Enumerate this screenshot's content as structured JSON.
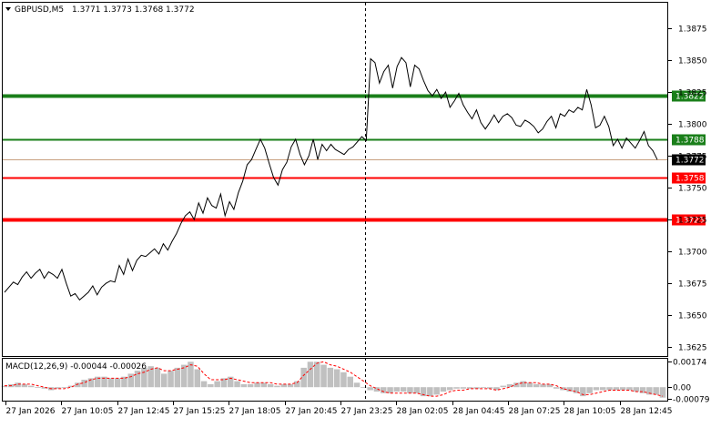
{
  "header": {
    "symbol": "GBPUSD,M5",
    "ohlc": "1.3771 1.3773 1.3768 1.3772"
  },
  "macd_header": {
    "label": "MACD(12,26,9) -0.00044 -0.00026"
  },
  "colors": {
    "price_line": "#000000",
    "resistance": "#1a7f1a",
    "support": "#ff0000",
    "current_price_bg": "#000000",
    "macd_histogram": "#c0c0c0",
    "macd_signal": "#ff0000",
    "grid": "#000000"
  },
  "chart_data": {
    "type": "line",
    "price_axis": {
      "ticks": [
        1.3875,
        1.385,
        1.3825,
        1.38,
        1.3775,
        1.375,
        1.3725,
        1.37,
        1.3675,
        1.365,
        1.3625
      ],
      "tick_labels": [
        "1.3875",
        "1.3850",
        "1.3825",
        "1.3800",
        "1.3775",
        "1.3750",
        "1.3725",
        "1.3700",
        "1.3675",
        "1.3650",
        "1.3625"
      ],
      "ylim": [
        1.3618,
        1.3895
      ]
    },
    "time_axis": {
      "labels": [
        "27 Jan 2026",
        "27 Jan 10:05",
        "27 Jan 12:45",
        "27 Jan 15:25",
        "27 Jan 18:05",
        "27 Jan 20:45",
        "27 Jan 23:25",
        "28 Jan 02:05",
        "28 Jan 04:45",
        "28 Jan 07:25",
        "28 Jan 10:05",
        "28 Jan 12:45"
      ]
    },
    "current_price": {
      "value": 1.3772,
      "label": "1.3772"
    },
    "levels": [
      {
        "value": 1.3822,
        "label": "1.3822",
        "kind": "resistance",
        "weight": "thick"
      },
      {
        "value": 1.3788,
        "label": "1.3788",
        "kind": "resistance",
        "weight": "thin"
      },
      {
        "value": 1.3758,
        "label": "1.3758",
        "kind": "support",
        "weight": "thin"
      },
      {
        "value": 1.3725,
        "label": "1.3725",
        "kind": "support",
        "weight": "thick"
      }
    ],
    "series": [
      {
        "values": [
          1.3668,
          1.3672,
          1.3676,
          1.3674,
          1.368,
          1.3684,
          1.3679,
          1.3683,
          1.3686,
          1.3679,
          1.3684,
          1.3682,
          1.3679,
          1.3686,
          1.3675,
          1.3665,
          1.3667,
          1.3662,
          1.3665,
          1.3668,
          1.3673,
          1.3666,
          1.3672,
          1.3675,
          1.3677,
          1.3676,
          1.3689,
          1.3682,
          1.3694,
          1.3685,
          1.3693,
          1.3697,
          1.3696,
          1.3699,
          1.3702,
          1.3698,
          1.3706,
          1.3701,
          1.3708,
          1.3714,
          1.3722,
          1.3728,
          1.3731,
          1.3725,
          1.3738,
          1.373,
          1.3742,
          1.3736,
          1.3734,
          1.3745,
          1.3728,
          1.3739,
          1.3733,
          1.3746,
          1.3755,
          1.3768,
          1.3772,
          1.378,
          1.3788,
          1.3781,
          1.3769,
          1.3758,
          1.3752,
          1.3764,
          1.377,
          1.3782,
          1.3788,
          1.3776,
          1.3768,
          1.3775,
          1.3788,
          1.3772,
          1.3784,
          1.3779,
          1.3784,
          1.378,
          1.3778,
          1.3776,
          1.378,
          1.3782,
          1.3786,
          1.379,
          1.3787,
          1.3851,
          1.3848,
          1.3832,
          1.3841,
          1.3846,
          1.3828,
          1.3845,
          1.3852,
          1.3848,
          1.3829,
          1.3846,
          1.3843,
          1.3834,
          1.3826,
          1.3822,
          1.3827,
          1.382,
          1.3825,
          1.3813,
          1.3818,
          1.3824,
          1.3815,
          1.3809,
          1.3804,
          1.3811,
          1.3801,
          1.3796,
          1.3801,
          1.3807,
          1.3801,
          1.3806,
          1.3808,
          1.3805,
          1.3799,
          1.3798,
          1.3803,
          1.3801,
          1.3798,
          1.3793,
          1.3796,
          1.3802,
          1.3806,
          1.3797,
          1.3808,
          1.3806,
          1.3811,
          1.3809,
          1.3813,
          1.3811,
          1.3827,
          1.3815,
          1.3797,
          1.3799,
          1.3806,
          1.3798,
          1.3783,
          1.3788,
          1.3781,
          1.3789,
          1.3785,
          1.3781,
          1.3787,
          1.3794,
          1.3783,
          1.3779,
          1.3772
        ]
      }
    ],
    "macd": {
      "label": "MACD(12,26,9)",
      "main": -0.00044,
      "signal": -0.00026,
      "axis_ticks": [
        0.00174,
        0.0,
        -0.00079
      ],
      "axis_labels": [
        "0.00174",
        "0.00",
        "-0.00079"
      ],
      "ylim": [
        -0.0009,
        0.0019
      ],
      "histogram": [
        0.0001,
        0.0002,
        0.0003,
        0.0002,
        0.0001,
        0.0,
        -0.0001,
        -0.0002,
        -0.0001,
        0.0,
        0.0001,
        0.0003,
        0.0005,
        0.0006,
        0.0007,
        0.0007,
        0.0006,
        0.0006,
        0.0007,
        0.0009,
        0.0011,
        0.0013,
        0.0014,
        0.0013,
        0.0009,
        0.0011,
        0.0013,
        0.0015,
        0.0017,
        0.0012,
        0.0004,
        0.0002,
        0.0004,
        0.0006,
        0.0007,
        0.0004,
        0.0002,
        0.0002,
        0.0003,
        0.0003,
        0.0002,
        0.0001,
        0.0002,
        0.0002,
        0.0004,
        0.0013,
        0.0017,
        0.0017,
        0.0015,
        0.0013,
        0.0012,
        0.001,
        0.0007,
        0.0003,
        0.0,
        -0.0002,
        -0.0003,
        -0.0004,
        -0.0004,
        -0.0003,
        -0.0003,
        -0.0004,
        -0.0004,
        -0.0006,
        -0.0006,
        -0.0005,
        -0.0003,
        -0.0002,
        -0.0001,
        -0.0001,
        -0.0001,
        -0.0001,
        0.0,
        -0.0001,
        -0.0002,
        0.0001,
        0.0002,
        0.0003,
        0.0004,
        0.0003,
        0.0002,
        0.0002,
        0.0002,
        -0.0001,
        -0.0002,
        -0.0003,
        -0.0004,
        -0.0006,
        -0.0004,
        -0.0002,
        -0.0002,
        -0.0002,
        -0.0002,
        -0.0002,
        -0.0002,
        -0.0003,
        -0.0004,
        -0.0005,
        -0.0005,
        -0.0007
      ],
      "signal_line": [
        0.0001,
        0.0001,
        0.0002,
        0.0002,
        0.0002,
        0.0001,
        0.0,
        -0.0001,
        -0.0001,
        -0.0001,
        0.0,
        0.0002,
        0.0003,
        0.0005,
        0.0006,
        0.0006,
        0.0006,
        0.0006,
        0.0006,
        0.0007,
        0.0009,
        0.001,
        0.0012,
        0.0013,
        0.0011,
        0.0011,
        0.0012,
        0.0013,
        0.0015,
        0.0014,
        0.0009,
        0.0005,
        0.0005,
        0.0005,
        0.0006,
        0.0005,
        0.0004,
        0.0003,
        0.0003,
        0.0003,
        0.0003,
        0.0002,
        0.0002,
        0.0002,
        0.0003,
        0.0008,
        0.0012,
        0.0016,
        0.0017,
        0.0015,
        0.0014,
        0.0012,
        0.001,
        0.0007,
        0.0004,
        0.0001,
        -0.0001,
        -0.0003,
        -0.0004,
        -0.0004,
        -0.0004,
        -0.0004,
        -0.0004,
        -0.0005,
        -0.0006,
        -0.0006,
        -0.0005,
        -0.0003,
        -0.0002,
        -0.0002,
        -0.0001,
        -0.0001,
        -0.0001,
        -0.0001,
        -0.0002,
        -0.0001,
        0.0,
        0.0002,
        0.0003,
        0.0003,
        0.0003,
        0.0002,
        0.0002,
        0.0001,
        -0.0001,
        -0.0002,
        -0.0003,
        -0.0005,
        -0.0005,
        -0.0004,
        -0.0003,
        -0.0002,
        -0.0002,
        -0.0002,
        -0.0002,
        -0.0003,
        -0.0003,
        -0.0004,
        -0.0005,
        -0.0006
      ]
    }
  }
}
